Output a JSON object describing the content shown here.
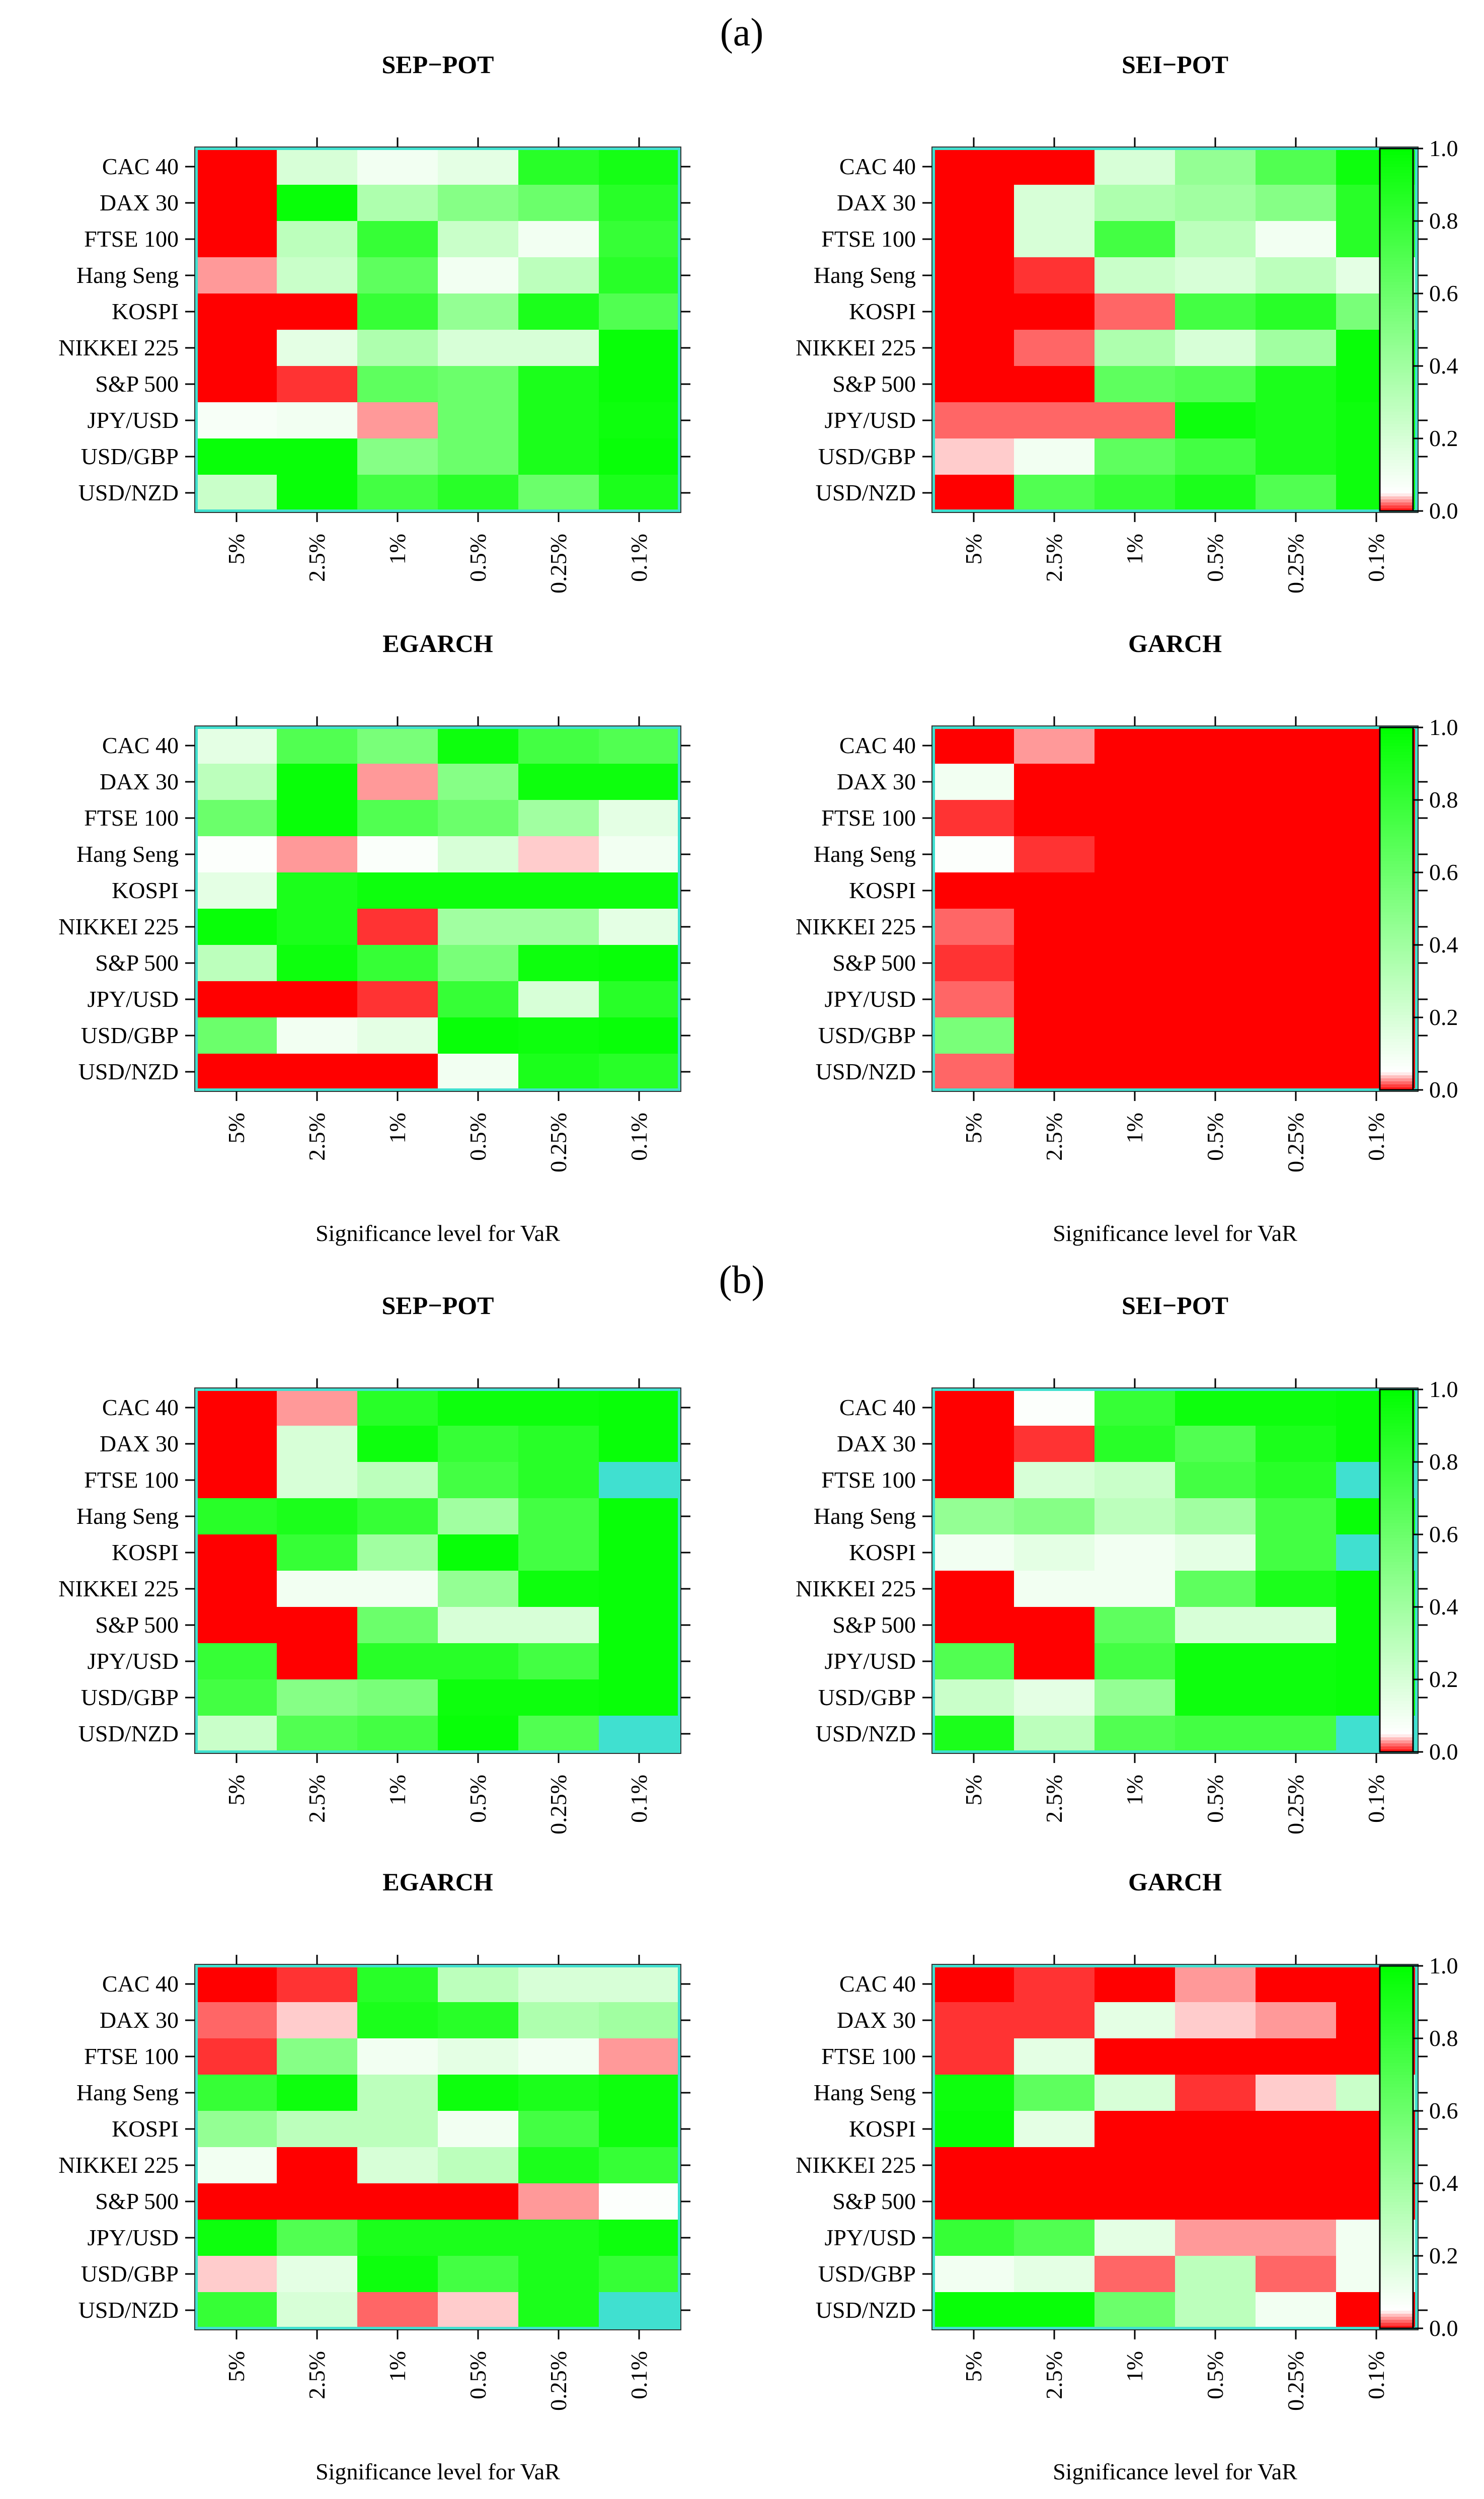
{
  "figure": {
    "panels": [
      {
        "label": "(a)"
      },
      {
        "label": "(b)"
      }
    ],
    "x_axis_label": "Significance level for VaR",
    "colorbar": {
      "ticks": [
        "0.0",
        "0.2",
        "0.4",
        "0.6",
        "0.8",
        "1.0"
      ],
      "ticks_values": [
        0.0,
        0.2,
        0.4,
        0.6,
        0.8,
        1.0
      ],
      "low_color": "#ff0000",
      "threshold_color": "#ffffff",
      "high_color": "#00ff00",
      "special_color": "#40e0d0",
      "frame_color": "#40e0d0"
    }
  },
  "chart_data": [
    {
      "type": "heatmap",
      "panel": "(a)",
      "title": "SEP−POT",
      "xlabel": "",
      "ylabel": "",
      "rows": [
        "CAC 40",
        "DAX 30",
        "FTSE 100",
        "Hang Seng",
        "KOSPI",
        "NIKKEI 225",
        "S&P 500",
        "JPY/USD",
        "USD/GBP",
        "USD/NZD"
      ],
      "cols": [
        "5%",
        "2.5%",
        "1%",
        "0.5%",
        "0.25%",
        "0.1%"
      ],
      "values": [
        [
          0.0,
          0.2,
          0.1,
          0.15,
          0.85,
          0.92
        ],
        [
          0.0,
          0.97,
          0.35,
          0.5,
          0.6,
          0.85
        ],
        [
          0.0,
          0.3,
          0.8,
          0.25,
          0.1,
          0.8
        ],
        [
          0.03,
          0.25,
          0.65,
          0.1,
          0.3,
          0.85
        ],
        [
          0.0,
          0.0,
          0.8,
          0.45,
          0.9,
          0.7
        ],
        [
          0.0,
          0.15,
          0.35,
          0.2,
          0.2,
          0.97
        ],
        [
          0.0,
          0.01,
          0.65,
          0.6,
          0.9,
          0.97
        ],
        [
          0.08,
          0.1,
          0.03,
          0.6,
          0.9,
          0.95
        ],
        [
          0.97,
          0.97,
          0.5,
          0.6,
          0.9,
          0.97
        ],
        [
          0.25,
          0.97,
          0.75,
          0.85,
          0.6,
          0.9
        ]
      ]
    },
    {
      "type": "heatmap",
      "panel": "(a)",
      "title": "SEI−POT",
      "xlabel": "",
      "ylabel": "",
      "rows": [
        "CAC 40",
        "DAX 30",
        "FTSE 100",
        "Hang Seng",
        "KOSPI",
        "NIKKEI 225",
        "S&P 500",
        "JPY/USD",
        "USD/GBP",
        "USD/NZD"
      ],
      "cols": [
        "5%",
        "2.5%",
        "1%",
        "0.5%",
        "0.25%",
        "0.1%"
      ],
      "values": [
        [
          0.0,
          0.0,
          0.2,
          0.45,
          0.7,
          0.95
        ],
        [
          0.0,
          0.2,
          0.35,
          0.4,
          0.5,
          0.85
        ],
        [
          0.0,
          0.2,
          0.75,
          0.3,
          0.1,
          0.85
        ],
        [
          0.0,
          0.01,
          0.25,
          0.2,
          0.3,
          0.15
        ],
        [
          0.0,
          0.0,
          0.02,
          0.75,
          0.85,
          0.55
        ],
        [
          0.0,
          0.02,
          0.35,
          0.2,
          0.4,
          0.97
        ],
        [
          0.0,
          0.0,
          0.65,
          0.7,
          0.9,
          0.97
        ],
        [
          0.02,
          0.02,
          0.02,
          0.95,
          0.9,
          0.95
        ],
        [
          0.04,
          0.1,
          0.65,
          0.75,
          0.9,
          0.95
        ],
        [
          0.0,
          0.7,
          0.8,
          0.9,
          0.7,
          0.95
        ]
      ]
    },
    {
      "type": "heatmap",
      "panel": "(a)",
      "title": "EGARCH",
      "xlabel": "Significance level for VaR",
      "ylabel": "",
      "rows": [
        "CAC 40",
        "DAX 30",
        "FTSE 100",
        "Hang Seng",
        "KOSPI",
        "NIKKEI 225",
        "S&P 500",
        "JPY/USD",
        "USD/GBP",
        "USD/NZD"
      ],
      "cols": [
        "5%",
        "2.5%",
        "1%",
        "0.5%",
        "0.25%",
        "0.1%"
      ],
      "values": [
        [
          0.15,
          0.7,
          0.55,
          0.95,
          0.75,
          0.7
        ],
        [
          0.3,
          0.97,
          0.03,
          0.5,
          0.95,
          0.95
        ],
        [
          0.6,
          0.97,
          0.7,
          0.6,
          0.4,
          0.15
        ],
        [
          0.06,
          0.03,
          0.07,
          0.2,
          0.04,
          0.1
        ],
        [
          0.15,
          0.9,
          0.95,
          0.95,
          0.95,
          0.95
        ],
        [
          0.97,
          0.9,
          0.01,
          0.4,
          0.4,
          0.15
        ],
        [
          0.3,
          0.95,
          0.8,
          0.55,
          0.95,
          0.97
        ],
        [
          0.0,
          0.0,
          0.01,
          0.8,
          0.2,
          0.85
        ],
        [
          0.6,
          0.1,
          0.15,
          0.97,
          0.95,
          0.97
        ],
        [
          0.0,
          0.0,
          0.0,
          0.1,
          0.9,
          0.85
        ]
      ]
    },
    {
      "type": "heatmap",
      "panel": "(a)",
      "title": "GARCH",
      "xlabel": "Significance level for VaR",
      "ylabel": "",
      "rows": [
        "CAC 40",
        "DAX 30",
        "FTSE 100",
        "Hang Seng",
        "KOSPI",
        "NIKKEI 225",
        "S&P 500",
        "JPY/USD",
        "USD/GBP",
        "USD/NZD"
      ],
      "cols": [
        "5%",
        "2.5%",
        "1%",
        "0.5%",
        "0.25%",
        "0.1%"
      ],
      "values": [
        [
          0.0,
          0.03,
          0.0,
          0.0,
          0.0,
          0.0
        ],
        [
          0.1,
          0.0,
          0.0,
          0.0,
          0.0,
          0.0
        ],
        [
          0.01,
          0.0,
          0.0,
          0.0,
          0.0,
          0.0
        ],
        [
          0.06,
          0.01,
          0.0,
          0.0,
          0.0,
          0.0
        ],
        [
          0.0,
          0.0,
          0.0,
          0.0,
          0.0,
          0.0
        ],
        [
          0.02,
          0.0,
          0.0,
          0.0,
          0.0,
          0.0
        ],
        [
          0.01,
          0.0,
          0.0,
          0.0,
          0.0,
          0.0
        ],
        [
          0.02,
          0.0,
          0.0,
          0.0,
          0.0,
          0.0
        ],
        [
          0.55,
          0.0,
          0.0,
          0.0,
          0.0,
          0.0
        ],
        [
          0.02,
          0.0,
          0.0,
          0.0,
          0.0,
          0.0
        ]
      ]
    },
    {
      "type": "heatmap",
      "panel": "(b)",
      "title": "SEP−POT",
      "xlabel": "",
      "ylabel": "",
      "rows": [
        "CAC 40",
        "DAX 30",
        "FTSE 100",
        "Hang Seng",
        "KOSPI",
        "NIKKEI 225",
        "S&P 500",
        "JPY/USD",
        "USD/GBP",
        "USD/NZD"
      ],
      "cols": [
        "5%",
        "2.5%",
        "1%",
        "0.5%",
        "0.25%",
        "0.1%"
      ],
      "values": [
        [
          0.0,
          0.03,
          0.85,
          0.95,
          0.95,
          0.97
        ],
        [
          0.0,
          0.2,
          0.95,
          0.8,
          0.85,
          0.97
        ],
        [
          0.0,
          0.2,
          0.3,
          0.75,
          0.85,
          null
        ],
        [
          0.85,
          0.9,
          0.8,
          0.4,
          0.75,
          0.97
        ],
        [
          0.0,
          0.8,
          0.4,
          0.97,
          0.75,
          0.97
        ],
        [
          0.0,
          0.1,
          0.1,
          0.45,
          0.95,
          0.97
        ],
        [
          0.0,
          0.0,
          0.6,
          0.2,
          0.2,
          0.97
        ],
        [
          0.8,
          0.0,
          0.85,
          0.85,
          0.75,
          0.97
        ],
        [
          0.75,
          0.5,
          0.55,
          0.95,
          0.95,
          0.97
        ],
        [
          0.25,
          0.7,
          0.75,
          0.97,
          0.7,
          null
        ]
      ]
    },
    {
      "type": "heatmap",
      "panel": "(b)",
      "title": "SEI−POT",
      "xlabel": "",
      "ylabel": "",
      "rows": [
        "CAC 40",
        "DAX 30",
        "FTSE 100",
        "Hang Seng",
        "KOSPI",
        "NIKKEI 225",
        "S&P 500",
        "JPY/USD",
        "USD/GBP",
        "USD/NZD"
      ],
      "cols": [
        "5%",
        "2.5%",
        "1%",
        "0.5%",
        "0.25%",
        "0.1%"
      ],
      "values": [
        [
          0.0,
          0.06,
          0.8,
          0.95,
          0.95,
          0.97
        ],
        [
          0.0,
          0.01,
          0.85,
          0.7,
          0.9,
          0.97
        ],
        [
          0.0,
          0.2,
          0.25,
          0.75,
          0.85,
          null
        ],
        [
          0.45,
          0.5,
          0.3,
          0.4,
          0.75,
          0.97
        ],
        [
          0.1,
          0.15,
          0.1,
          0.15,
          0.75,
          null
        ],
        [
          0.0,
          0.1,
          0.1,
          0.65,
          0.9,
          0.97
        ],
        [
          0.0,
          0.0,
          0.65,
          0.2,
          0.2,
          0.97
        ],
        [
          0.7,
          0.0,
          0.75,
          0.95,
          0.95,
          0.97
        ],
        [
          0.25,
          0.15,
          0.45,
          0.95,
          0.95,
          0.97
        ],
        [
          0.9,
          0.3,
          0.7,
          0.75,
          0.75,
          null
        ]
      ]
    },
    {
      "type": "heatmap",
      "panel": "(b)",
      "title": "EGARCH",
      "xlabel": "Significance level for VaR",
      "ylabel": "",
      "rows": [
        "CAC 40",
        "DAX 30",
        "FTSE 100",
        "Hang Seng",
        "KOSPI",
        "NIKKEI 225",
        "S&P 500",
        "JPY/USD",
        "USD/GBP",
        "USD/NZD"
      ],
      "cols": [
        "5%",
        "2.5%",
        "1%",
        "0.5%",
        "0.25%",
        "0.1%"
      ],
      "values": [
        [
          0.0,
          0.01,
          0.85,
          0.3,
          0.2,
          0.2
        ],
        [
          0.02,
          0.04,
          0.9,
          0.85,
          0.35,
          0.4
        ],
        [
          0.01,
          0.5,
          0.1,
          0.15,
          0.1,
          0.03
        ],
        [
          0.8,
          0.95,
          0.3,
          0.95,
          0.9,
          0.95
        ],
        [
          0.45,
          0.3,
          0.3,
          0.1,
          0.75,
          0.95
        ],
        [
          0.1,
          0.0,
          0.2,
          0.3,
          0.9,
          0.8
        ],
        [
          0.0,
          0.0,
          0.0,
          0.0,
          0.03,
          0.06
        ],
        [
          0.95,
          0.7,
          0.9,
          0.9,
          0.9,
          0.95
        ],
        [
          0.04,
          0.15,
          0.95,
          0.75,
          0.9,
          0.8
        ],
        [
          0.8,
          0.2,
          0.02,
          0.04,
          0.9,
          null
        ]
      ]
    },
    {
      "type": "heatmap",
      "panel": "(b)",
      "title": "GARCH",
      "xlabel": "Significance level for VaR",
      "ylabel": "",
      "rows": [
        "CAC 40",
        "DAX 30",
        "FTSE 100",
        "Hang Seng",
        "KOSPI",
        "NIKKEI 225",
        "S&P 500",
        "JPY/USD",
        "USD/GBP",
        "USD/NZD"
      ],
      "cols": [
        "5%",
        "2.5%",
        "1%",
        "0.5%",
        "0.25%",
        "0.1%"
      ],
      "values": [
        [
          0.0,
          0.01,
          0.0,
          0.03,
          0.0,
          0.0
        ],
        [
          0.01,
          0.01,
          0.15,
          0.04,
          0.03,
          0.0
        ],
        [
          0.01,
          0.15,
          0.0,
          0.0,
          0.0,
          0.0
        ],
        [
          0.95,
          0.65,
          0.2,
          0.01,
          0.04,
          0.25
        ],
        [
          0.97,
          0.15,
          0.0,
          0.0,
          0.0,
          0.0
        ],
        [
          0.0,
          0.0,
          0.0,
          0.0,
          0.0,
          0.0
        ],
        [
          0.0,
          0.0,
          0.0,
          0.0,
          0.0,
          0.0
        ],
        [
          0.8,
          0.7,
          0.15,
          0.03,
          0.03,
          0.1
        ],
        [
          0.1,
          0.15,
          0.02,
          0.3,
          0.02,
          0.1
        ],
        [
          0.97,
          0.97,
          0.6,
          0.3,
          0.1,
          0.0
        ]
      ]
    }
  ]
}
